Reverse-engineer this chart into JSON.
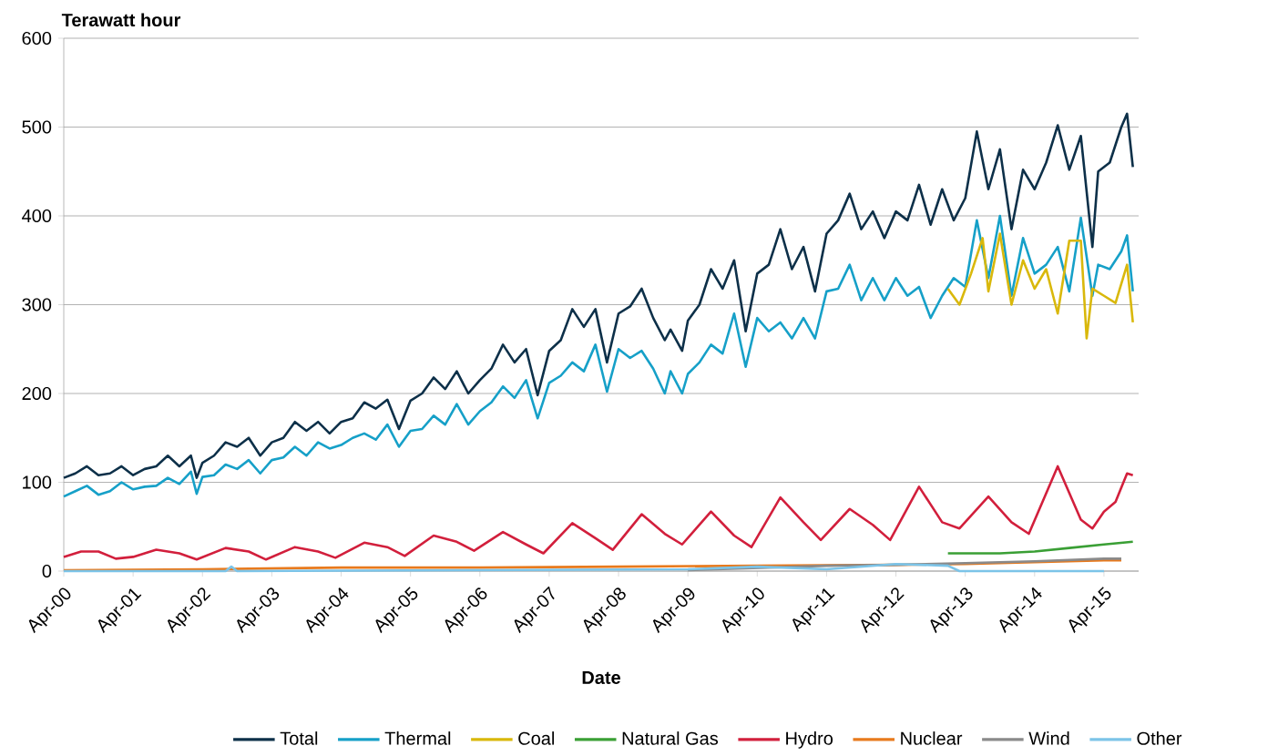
{
  "chart_data": {
    "type": "line",
    "xlabel": "Date",
    "ylabel": "Terawatt hour",
    "xlim": [
      "2000-04",
      "2015-10"
    ],
    "ylim": [
      0,
      600
    ],
    "xticks": [
      {
        "value": "2000-04",
        "label": "Apr-00"
      },
      {
        "value": "2001-04",
        "label": "Apr-01"
      },
      {
        "value": "2002-04",
        "label": "Apr-02"
      },
      {
        "value": "2003-04",
        "label": "Apr-03"
      },
      {
        "value": "2004-04",
        "label": "Apr-04"
      },
      {
        "value": "2005-04",
        "label": "Apr-05"
      },
      {
        "value": "2006-04",
        "label": "Apr-06"
      },
      {
        "value": "2007-04",
        "label": "Apr-07"
      },
      {
        "value": "2008-04",
        "label": "Apr-08"
      },
      {
        "value": "2009-04",
        "label": "Apr-09"
      },
      {
        "value": "2010-04",
        "label": "Apr-10"
      },
      {
        "value": "2011-04",
        "label": "Apr-11"
      },
      {
        "value": "2012-04",
        "label": "Apr-12"
      },
      {
        "value": "2013-04",
        "label": "Apr-13"
      },
      {
        "value": "2014-04",
        "label": "Apr-14"
      },
      {
        "value": "2015-04",
        "label": "Apr-15"
      }
    ],
    "yticks": [
      0,
      100,
      200,
      300,
      400,
      500,
      600
    ],
    "grid": "y",
    "legend": "bottom",
    "series": [
      {
        "name": "Total",
        "color": "#0d3049",
        "x": [
          "2000-04",
          "2000-06",
          "2000-08",
          "2000-10",
          "2000-12",
          "2001-02",
          "2001-04",
          "2001-06",
          "2001-08",
          "2001-10",
          "2001-12",
          "2002-02",
          "2002-03",
          "2002-04",
          "2002-06",
          "2002-08",
          "2002-10",
          "2002-12",
          "2003-02",
          "2003-04",
          "2003-06",
          "2003-08",
          "2003-10",
          "2003-12",
          "2004-02",
          "2004-04",
          "2004-06",
          "2004-08",
          "2004-10",
          "2004-12",
          "2005-02",
          "2005-04",
          "2005-06",
          "2005-08",
          "2005-10",
          "2005-12",
          "2006-02",
          "2006-04",
          "2006-06",
          "2006-08",
          "2006-10",
          "2006-12",
          "2007-02",
          "2007-04",
          "2007-06",
          "2007-08",
          "2007-10",
          "2007-12",
          "2008-02",
          "2008-04",
          "2008-06",
          "2008-08",
          "2008-10",
          "2008-12",
          "2009-01",
          "2009-03",
          "2009-04",
          "2009-06",
          "2009-08",
          "2009-10",
          "2009-12",
          "2010-02",
          "2010-04",
          "2010-06",
          "2010-08",
          "2010-10",
          "2010-12",
          "2011-02",
          "2011-04",
          "2011-06",
          "2011-08",
          "2011-10",
          "2011-12",
          "2012-02",
          "2012-04",
          "2012-06",
          "2012-08",
          "2012-10",
          "2012-12",
          "2013-02",
          "2013-04",
          "2013-06",
          "2013-08",
          "2013-10",
          "2013-12",
          "2014-02",
          "2014-04",
          "2014-06",
          "2014-08",
          "2014-10",
          "2014-12",
          "2015-02",
          "2015-03",
          "2015-05",
          "2015-07",
          "2015-08",
          "2015-09"
        ],
        "values": [
          105,
          110,
          118,
          108,
          110,
          118,
          108,
          115,
          118,
          130,
          118,
          130,
          105,
          122,
          130,
          145,
          140,
          150,
          130,
          145,
          150,
          168,
          158,
          168,
          155,
          168,
          172,
          190,
          183,
          193,
          160,
          192,
          200,
          218,
          205,
          225,
          200,
          215,
          228,
          255,
          235,
          250,
          198,
          248,
          260,
          295,
          275,
          295,
          235,
          290,
          298,
          318,
          285,
          260,
          272,
          248,
          282,
          300,
          340,
          318,
          350,
          270,
          335,
          345,
          385,
          340,
          365,
          315,
          380,
          395,
          425,
          385,
          405,
          375,
          405,
          395,
          435,
          390,
          430,
          395,
          420,
          495,
          430,
          475,
          385,
          452,
          430,
          460,
          502,
          452,
          490,
          365,
          450,
          460,
          500,
          515,
          455
        ]
      },
      {
        "name": "Thermal",
        "color": "#16a0c8",
        "x": [
          "2000-04",
          "2000-06",
          "2000-08",
          "2000-10",
          "2000-12",
          "2001-02",
          "2001-04",
          "2001-06",
          "2001-08",
          "2001-10",
          "2001-12",
          "2002-02",
          "2002-03",
          "2002-04",
          "2002-06",
          "2002-08",
          "2002-10",
          "2002-12",
          "2003-02",
          "2003-04",
          "2003-06",
          "2003-08",
          "2003-10",
          "2003-12",
          "2004-02",
          "2004-04",
          "2004-06",
          "2004-08",
          "2004-10",
          "2004-12",
          "2005-02",
          "2005-04",
          "2005-06",
          "2005-08",
          "2005-10",
          "2005-12",
          "2006-02",
          "2006-04",
          "2006-06",
          "2006-08",
          "2006-10",
          "2006-12",
          "2007-02",
          "2007-04",
          "2007-06",
          "2007-08",
          "2007-10",
          "2007-12",
          "2008-02",
          "2008-04",
          "2008-06",
          "2008-08",
          "2008-10",
          "2008-12",
          "2009-01",
          "2009-03",
          "2009-04",
          "2009-06",
          "2009-08",
          "2009-10",
          "2009-12",
          "2010-02",
          "2010-04",
          "2010-06",
          "2010-08",
          "2010-10",
          "2010-12",
          "2011-02",
          "2011-04",
          "2011-06",
          "2011-08",
          "2011-10",
          "2011-12",
          "2012-02",
          "2012-04",
          "2012-06",
          "2012-08",
          "2012-10",
          "2012-12",
          "2013-02",
          "2013-04",
          "2013-06",
          "2013-08",
          "2013-10",
          "2013-12",
          "2014-02",
          "2014-04",
          "2014-06",
          "2014-08",
          "2014-10",
          "2014-12",
          "2015-02",
          "2015-03",
          "2015-05",
          "2015-07",
          "2015-08",
          "2015-09"
        ],
        "values": [
          84,
          90,
          96,
          86,
          90,
          100,
          92,
          95,
          96,
          105,
          98,
          112,
          87,
          106,
          108,
          120,
          115,
          125,
          110,
          125,
          128,
          140,
          130,
          145,
          138,
          142,
          150,
          155,
          148,
          165,
          140,
          158,
          160,
          175,
          165,
          188,
          165,
          180,
          190,
          208,
          195,
          215,
          172,
          212,
          220,
          235,
          225,
          255,
          202,
          250,
          240,
          248,
          228,
          200,
          225,
          200,
          222,
          235,
          255,
          245,
          290,
          230,
          285,
          270,
          280,
          262,
          285,
          262,
          315,
          318,
          345,
          305,
          330,
          305,
          330,
          310,
          320,
          285,
          310,
          330,
          320,
          395,
          330,
          400,
          310,
          375,
          335,
          345,
          365,
          315,
          398,
          310,
          345,
          340,
          360,
          378,
          315
        ]
      },
      {
        "name": "Coal",
        "color": "#d9b80b",
        "x": [
          "2013-01",
          "2013-03",
          "2013-05",
          "2013-07",
          "2013-08",
          "2013-10",
          "2013-12",
          "2014-02",
          "2014-04",
          "2014-06",
          "2014-08",
          "2014-10",
          "2014-12",
          "2015-01",
          "2015-02",
          "2015-04",
          "2015-06",
          "2015-08",
          "2015-09"
        ],
        "values": [
          318,
          300,
          335,
          375,
          315,
          380,
          300,
          350,
          318,
          340,
          290,
          372,
          372,
          262,
          318,
          310,
          302,
          345,
          280
        ]
      },
      {
        "name": "Natural Gas",
        "color": "#3a9f35",
        "x": [
          "2013-01",
          "2013-10",
          "2014-04",
          "2014-10",
          "2015-04",
          "2015-09"
        ],
        "values": [
          20,
          20,
          22,
          26,
          30,
          33
        ]
      },
      {
        "name": "Hydro",
        "color": "#d21f3c",
        "x": [
          "2000-04",
          "2000-07",
          "2000-10",
          "2001-01",
          "2001-04",
          "2001-08",
          "2001-12",
          "2002-03",
          "2002-08",
          "2002-12",
          "2003-03",
          "2003-08",
          "2003-12",
          "2004-03",
          "2004-08",
          "2004-12",
          "2005-03",
          "2005-08",
          "2005-12",
          "2006-03",
          "2006-08",
          "2006-12",
          "2007-03",
          "2007-08",
          "2007-12",
          "2008-03",
          "2008-08",
          "2008-12",
          "2009-03",
          "2009-08",
          "2009-12",
          "2010-03",
          "2010-08",
          "2010-12",
          "2011-03",
          "2011-08",
          "2011-12",
          "2012-03",
          "2012-08",
          "2012-12",
          "2013-03",
          "2013-08",
          "2013-12",
          "2014-03",
          "2014-08",
          "2014-12",
          "2015-02",
          "2015-04",
          "2015-06",
          "2015-08",
          "2015-09"
        ],
        "values": [
          16,
          22,
          22,
          14,
          16,
          24,
          20,
          13,
          26,
          22,
          13,
          27,
          22,
          15,
          32,
          27,
          17,
          40,
          33,
          23,
          44,
          30,
          20,
          54,
          37,
          24,
          64,
          42,
          30,
          67,
          40,
          27,
          83,
          55,
          35,
          70,
          52,
          35,
          95,
          55,
          48,
          84,
          55,
          42,
          118,
          58,
          48,
          67,
          78,
          110,
          108
        ]
      },
      {
        "name": "Nuclear",
        "color": "#e87a1d",
        "x": [
          "2000-04",
          "2002-04",
          "2004-04",
          "2006-04",
          "2008-04",
          "2010-04",
          "2012-04",
          "2013-04",
          "2014-04",
          "2015-04",
          "2015-07"
        ],
        "values": [
          1,
          2,
          4,
          4,
          5,
          6,
          7,
          8,
          10,
          12,
          12
        ]
      },
      {
        "name": "Wind",
        "color": "#8a8a8a",
        "x": [
          "2009-04",
          "2011-04",
          "2012-04",
          "2013-04",
          "2014-04",
          "2015-04",
          "2015-07"
        ],
        "values": [
          1,
          6,
          7,
          9,
          11,
          14,
          14
        ]
      },
      {
        "name": "Other",
        "color": "#7cc4e8",
        "x": [
          "2000-04",
          "2002-08",
          "2002-09",
          "2002-10",
          "2009-04",
          "2010-04",
          "2011-04",
          "2012-04",
          "2013-01",
          "2013-03",
          "2015-04"
        ],
        "values": [
          0,
          0,
          5,
          0,
          2,
          5,
          2,
          8,
          6,
          0,
          0
        ]
      }
    ]
  }
}
